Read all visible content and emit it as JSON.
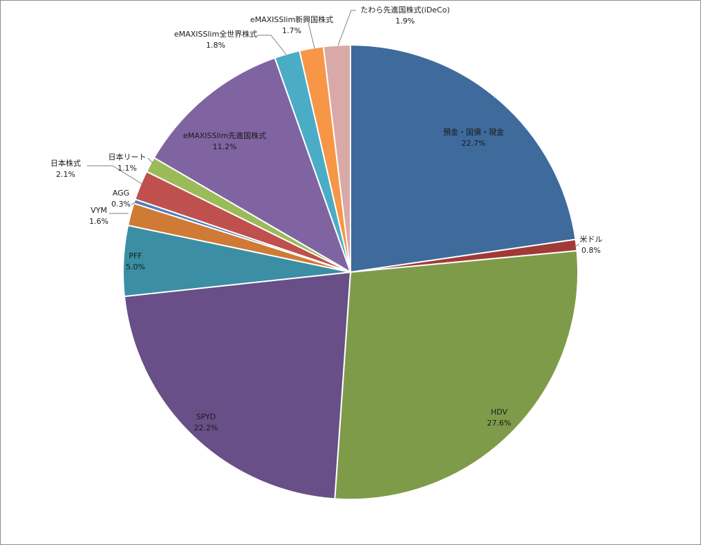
{
  "chart_data": {
    "type": "pie",
    "title": "",
    "start_angle_deg": 0,
    "direction": "clockwise",
    "slices": [
      {
        "name": "預金・国債・現金",
        "value": 22.7,
        "label": "22.7%",
        "color": "#3f6a9c",
        "label_position": "inside"
      },
      {
        "name": "米ドル",
        "value": 0.8,
        "label": "0.8%",
        "color": "#a03a37",
        "label_position": "outside"
      },
      {
        "name": "HDV",
        "value": 27.6,
        "label": "27.6%",
        "color": "#7e9b4a",
        "label_position": "inside"
      },
      {
        "name": "SPYD",
        "value": 22.2,
        "label": "22.2%",
        "color": "#684f87",
        "label_position": "inside"
      },
      {
        "name": "PFF",
        "value": 5.0,
        "label": "5.0%",
        "color": "#3b8ea3",
        "label_position": "inside"
      },
      {
        "name": "VYM",
        "value": 1.6,
        "label": "1.6%",
        "color": "#cf7a35",
        "label_position": "outside"
      },
      {
        "name": "AGG",
        "value": 0.3,
        "label": "0.3%",
        "color": "#4f7ec0",
        "label_position": "outside"
      },
      {
        "name": "日本株式",
        "value": 2.1,
        "label": "2.1%",
        "color": "#c0504d",
        "label_position": "outside"
      },
      {
        "name": "日本リート",
        "value": 1.1,
        "label": "1.1%",
        "color": "#9bbb59",
        "label_position": "outside"
      },
      {
        "name": "eMAXISSlim先進国株式",
        "value": 11.2,
        "label": "11.2%",
        "color": "#8064a2",
        "label_position": "inside"
      },
      {
        "name": "eMAXISSlim全世界株式",
        "value": 1.8,
        "label": "1.8%",
        "color": "#4bacc6",
        "label_position": "outside"
      },
      {
        "name": "eMAXISSlim新興国株式",
        "value": 1.7,
        "label": "1.7%",
        "color": "#f79646",
        "label_position": "outside"
      },
      {
        "name": "たわら先進国株式(iDeCo)",
        "value": 1.9,
        "label": "1.9%",
        "color": "#d9a9a8",
        "label_position": "outside"
      }
    ]
  }
}
